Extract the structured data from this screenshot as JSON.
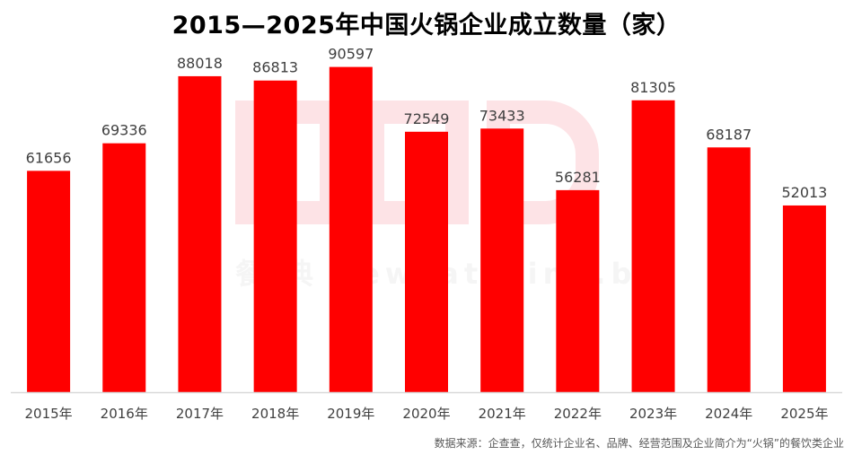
{
  "title": "2015—2025年中国火锅企业成立数量（家）",
  "source": "数据来源：企查查，仅统计企业名、品牌、经营范围及企业简介为“火锅”的餐饮类企业",
  "watermark_text": "餐  典  newcatering.big",
  "colors": {
    "bar": "#ff0000",
    "axis": "#d9d9d9",
    "label": "#404040"
  },
  "chart_data": {
    "type": "bar",
    "title": "2015—2025年中国火锅企业成立数量（家）",
    "categories": [
      "2015年",
      "2016年",
      "2017年",
      "2018年",
      "2019年",
      "2020年",
      "2021年",
      "2022年",
      "2023年",
      "2024年",
      "2025年"
    ],
    "values": [
      61656,
      69336,
      88018,
      86813,
      90597,
      72549,
      73433,
      56281,
      81305,
      68187,
      52013
    ],
    "xlabel": "",
    "ylabel": "",
    "ylim": [
      0,
      100000
    ],
    "grid": false,
    "legend": "none"
  }
}
